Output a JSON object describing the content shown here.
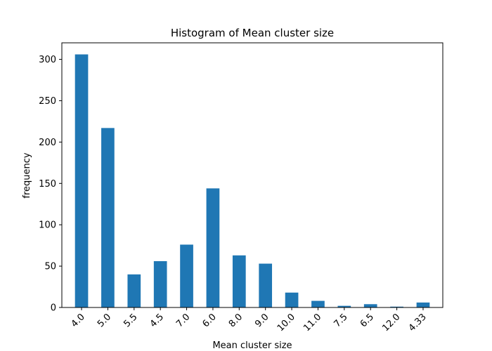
{
  "chart_data": {
    "type": "bar",
    "title": "Histogram of Mean cluster size",
    "xlabel": "Mean cluster size",
    "ylabel": "frequency",
    "categories": [
      "4.0",
      "5.0",
      "5.5",
      "4.5",
      "7.0",
      "6.0",
      "8.0",
      "9.0",
      "10.0",
      "11.0",
      "7.5",
      "6.5",
      "12.0",
      "4.33"
    ],
    "values": [
      306,
      217,
      40,
      56,
      76,
      144,
      63,
      53,
      18,
      8,
      2,
      4,
      1,
      6
    ],
    "ylim": [
      0,
      320
    ],
    "yticks": [
      0,
      50,
      100,
      150,
      200,
      250,
      300
    ],
    "bar_color": "#1f77b4",
    "grid": false
  }
}
